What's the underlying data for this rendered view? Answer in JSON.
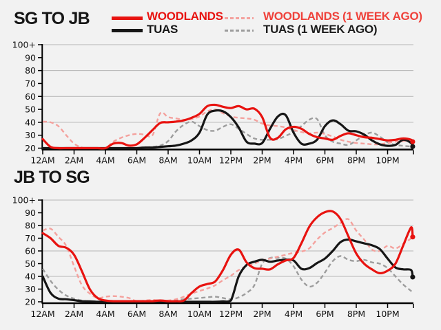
{
  "style": {
    "background": "#f2f2f2",
    "grid_color": "#b5b5b5",
    "axis_color": "#000000",
    "woodlands_red": "#e81310",
    "woodlands_prev_pink": "#f4a19d",
    "tuas_black": "#161616",
    "tuas_prev_gray": "#9d9d9d"
  },
  "legend": {
    "items": [
      {
        "id": "woodlands",
        "label": "WOODLANDS",
        "line_color": "#e81310",
        "text_color": "#e81310",
        "pattern": "solid"
      },
      {
        "id": "woodlands-week-ago",
        "label": "WOODLANDS (1 WEEK AGO)",
        "line_color": "#f4a19d",
        "text_color": "#ef423b",
        "pattern": "dashed"
      },
      {
        "id": "tuas",
        "label": "TUAS",
        "line_color": "#161616",
        "text_color": "#161616",
        "pattern": "solid"
      },
      {
        "id": "tuas-week-ago",
        "label": "TUAS (1 WEEK AGO)",
        "line_color": "#9d9d9d",
        "text_color": "#1d1d1d",
        "pattern": "dashed"
      }
    ]
  },
  "chart_data": [
    {
      "id": "sg-to-jb",
      "type": "line",
      "title": "SG TO JB",
      "xlabel": "",
      "ylabel": "",
      "ylim": [
        20,
        100
      ],
      "y_cap_label": "100+",
      "hours": [
        0,
        0.5,
        1,
        1.5,
        2,
        2.5,
        3,
        3.5,
        4,
        4.5,
        5,
        5.5,
        6,
        6.5,
        7,
        7.5,
        8,
        8.5,
        9,
        9.5,
        10,
        10.5,
        11,
        11.5,
        12,
        12.5,
        13,
        13.5,
        14,
        14.5,
        15,
        15.5,
        16,
        16.5,
        17,
        17.5,
        18,
        18.5,
        19,
        19.5,
        20,
        20.5,
        21,
        21.5,
        22,
        22.5,
        23,
        23.5,
        23.6
      ],
      "axes": {
        "x_ticks": [
          {
            "hour": 0,
            "label": "12AM"
          },
          {
            "hour": 2,
            "label": "2AM"
          },
          {
            "hour": 4,
            "label": "4AM"
          },
          {
            "hour": 6,
            "label": "6AM"
          },
          {
            "hour": 8,
            "label": "8AM"
          },
          {
            "hour": 10,
            "label": "10AM"
          },
          {
            "hour": 12,
            "label": "12PM"
          },
          {
            "hour": 14,
            "label": "2PM"
          },
          {
            "hour": 16,
            "label": "4PM"
          },
          {
            "hour": 18,
            "label": "6PM"
          },
          {
            "hour": 20,
            "label": "8PM"
          },
          {
            "hour": 22,
            "label": "10PM"
          }
        ],
        "y_ticks": [
          {
            "value": 20,
            "label": "20"
          },
          {
            "value": 30,
            "label": "30"
          },
          {
            "value": 40,
            "label": "40"
          },
          {
            "value": 50,
            "label": "50"
          },
          {
            "value": 60,
            "label": "60"
          },
          {
            "value": 70,
            "label": "70"
          },
          {
            "value": 80,
            "label": "80"
          },
          {
            "value": 90,
            "label": "90"
          },
          {
            "value": 100,
            "label": "100+"
          }
        ],
        "gridlines": [
          40,
          60,
          80,
          100
        ],
        "x_range_hours": [
          0,
          23.65
        ]
      },
      "series": [
        {
          "id": "tuas-week-ago",
          "name": "TUAS (1 WEEK AGO)",
          "color": "#9d9d9d",
          "dash": true,
          "width": 2.4,
          "end_dot": false,
          "values": [
            20,
            20,
            20,
            20,
            20,
            20,
            20,
            20,
            20,
            20,
            20,
            20,
            20,
            20.5,
            21,
            22,
            25.5,
            33,
            38,
            40.5,
            37,
            34,
            33.5,
            36.5,
            38.5,
            35,
            31,
            27.5,
            26.5,
            26.5,
            27,
            29.5,
            32.5,
            37,
            42,
            42.5,
            30,
            25,
            23.5,
            22.5,
            26,
            30,
            32,
            29,
            24.5,
            22.5,
            21.8,
            21.2,
            20.8
          ]
        },
        {
          "id": "woodlands-week-ago",
          "name": "WOODLANDS (1 WEEK AGO)",
          "color": "#f4a19d",
          "dash": true,
          "width": 2.4,
          "end_dot": false,
          "values": [
            40.5,
            40,
            37,
            30,
            23.5,
            20.5,
            20,
            20,
            20,
            25,
            28,
            30,
            31,
            30.5,
            30,
            47,
            44,
            43,
            42,
            42.5,
            44.5,
            48.5,
            50,
            47,
            44.5,
            43.5,
            43,
            42,
            39,
            37.5,
            37,
            36,
            34,
            32.5,
            31.5,
            32,
            31,
            29,
            26.5,
            25,
            24,
            23.5,
            23,
            23,
            24,
            25,
            25.5,
            26,
            26
          ]
        },
        {
          "id": "tuas",
          "name": "TUAS",
          "color": "#161616",
          "dash": false,
          "width": 3.2,
          "end_dot": true,
          "values": [
            20,
            20,
            20,
            20,
            20,
            20,
            20,
            20,
            20,
            20,
            20,
            20,
            20,
            20.5,
            20.5,
            21,
            21.5,
            22,
            23.5,
            26,
            32,
            46,
            49,
            48.5,
            44,
            36,
            25,
            23.5,
            24,
            35,
            44.5,
            45.5,
            32,
            23.5,
            23.5,
            26.5,
            37,
            41.5,
            38.5,
            33.5,
            33,
            30.5,
            26,
            23,
            21.8,
            22.5,
            26.5,
            24,
            21.3
          ]
        },
        {
          "id": "woodlands",
          "name": "WOODLANDS",
          "color": "#e81310",
          "dash": false,
          "width": 3.2,
          "end_dot": true,
          "values": [
            27,
            21,
            20,
            20,
            20,
            20,
            20,
            20,
            20,
            23.5,
            24,
            22,
            23,
            28,
            34,
            39.5,
            40,
            40.5,
            41.5,
            43.5,
            46.5,
            52.5,
            53.5,
            52,
            51,
            52.5,
            50,
            50.5,
            44,
            28,
            28,
            34.5,
            36.5,
            35,
            31,
            28.5,
            27.5,
            26.5,
            29.5,
            31.5,
            30,
            28.5,
            28,
            27,
            26,
            26.5,
            27.5,
            26.5,
            25
          ]
        }
      ]
    },
    {
      "id": "jb-to-sg",
      "type": "line",
      "title": "JB TO SG",
      "xlabel": "",
      "ylabel": "",
      "ylim": [
        20,
        100
      ],
      "y_cap_label": "100+",
      "hours": [
        0,
        0.5,
        1,
        1.5,
        2,
        2.5,
        3,
        3.5,
        4,
        4.5,
        5,
        5.5,
        6,
        6.5,
        7,
        7.5,
        8,
        8.5,
        9,
        9.5,
        10,
        10.5,
        11,
        11.5,
        12,
        12.5,
        13,
        13.5,
        14,
        14.5,
        15,
        15.5,
        16,
        16.5,
        17,
        17.5,
        18,
        18.5,
        19,
        19.5,
        20,
        20.5,
        21,
        21.5,
        22,
        22.5,
        23,
        23.5,
        23.6
      ],
      "axes": {
        "x_ticks": [
          {
            "hour": 0,
            "label": "12AM"
          },
          {
            "hour": 2,
            "label": "2AM"
          },
          {
            "hour": 4,
            "label": "4AM"
          },
          {
            "hour": 6,
            "label": "6AM"
          },
          {
            "hour": 8,
            "label": "8AM"
          },
          {
            "hour": 10,
            "label": "10AM"
          },
          {
            "hour": 12,
            "label": "12PM"
          },
          {
            "hour": 14,
            "label": "2PM"
          },
          {
            "hour": 16,
            "label": "4PM"
          },
          {
            "hour": 18,
            "label": "6PM"
          },
          {
            "hour": 20,
            "label": "8PM"
          },
          {
            "hour": 22,
            "label": "10PM"
          }
        ],
        "y_ticks": [
          {
            "value": 20,
            "label": "20"
          },
          {
            "value": 30,
            "label": "30"
          },
          {
            "value": 40,
            "label": "40"
          },
          {
            "value": 50,
            "label": "50"
          },
          {
            "value": 60,
            "label": "60"
          },
          {
            "value": 70,
            "label": "70"
          },
          {
            "value": 80,
            "label": "80"
          },
          {
            "value": 90,
            "label": "90"
          },
          {
            "value": 100,
            "label": "100+"
          }
        ],
        "gridlines": [
          40,
          60,
          80,
          100
        ],
        "x_range_hours": [
          0,
          23.65
        ]
      },
      "series": [
        {
          "id": "tuas-week-ago",
          "name": "TUAS (1 WEEK AGO)",
          "color": "#9d9d9d",
          "dash": true,
          "width": 2.4,
          "end_dot": false,
          "values": [
            46,
            36.5,
            29.5,
            25,
            22.5,
            21,
            20.5,
            20.3,
            20.3,
            20.3,
            20.3,
            20.3,
            20.3,
            20.3,
            20.3,
            20.3,
            20.4,
            21.3,
            22,
            22.5,
            23,
            23.5,
            24,
            23,
            22,
            23.5,
            27,
            33,
            50,
            54.5,
            54.5,
            54,
            48,
            37.5,
            32,
            35,
            43,
            52,
            56,
            53,
            52,
            53,
            51,
            50,
            46.5,
            40,
            33.5,
            28.5,
            26.5
          ]
        },
        {
          "id": "woodlands-week-ago",
          "name": "WOODLANDS (1 WEEK AGO)",
          "color": "#f4a19d",
          "dash": true,
          "width": 2.4,
          "end_dot": false,
          "values": [
            76,
            77.5,
            71,
            64,
            48,
            33,
            26.5,
            23,
            24,
            24.5,
            24,
            23,
            20.5,
            21,
            21.5,
            21,
            21,
            22,
            24,
            26.5,
            28.5,
            30.5,
            33,
            37,
            40.5,
            45,
            48,
            50,
            52.5,
            54,
            55.5,
            57,
            58.5,
            59.5,
            62,
            69,
            74.5,
            78,
            82,
            85,
            76,
            69,
            61,
            60,
            64,
            62,
            65.5,
            70,
            72.5
          ]
        },
        {
          "id": "tuas",
          "name": "TUAS",
          "color": "#161616",
          "dash": false,
          "width": 3.2,
          "end_dot": true,
          "values": [
            40,
            27,
            22.5,
            22,
            21.3,
            20.5,
            20.3,
            20,
            20,
            20,
            20,
            20,
            20,
            20,
            20,
            20,
            20,
            20,
            20,
            20,
            20,
            20,
            20,
            20.3,
            21,
            40,
            49,
            51.5,
            53,
            51.5,
            52.5,
            53,
            52.5,
            46,
            46.5,
            50.5,
            54,
            60,
            67,
            69,
            67.5,
            66,
            64.5,
            61.5,
            54,
            47,
            45.5,
            45,
            39.5
          ]
        },
        {
          "id": "woodlands",
          "name": "WOODLANDS",
          "color": "#e81310",
          "dash": false,
          "width": 3.2,
          "end_dot": true,
          "values": [
            74,
            70,
            64,
            62.5,
            57,
            44,
            30,
            23,
            21,
            20.5,
            20.5,
            20.5,
            20.5,
            20.5,
            20.5,
            21,
            20.5,
            20.5,
            21,
            27,
            32,
            34,
            36,
            45,
            57,
            61,
            51,
            46.5,
            46,
            45.5,
            49.5,
            52.5,
            54.5,
            66,
            79,
            86.5,
            90.5,
            91,
            85,
            71.5,
            58,
            50,
            45.5,
            42.5,
            44.5,
            50,
            64.5,
            78.5,
            71
          ]
        }
      ]
    }
  ]
}
